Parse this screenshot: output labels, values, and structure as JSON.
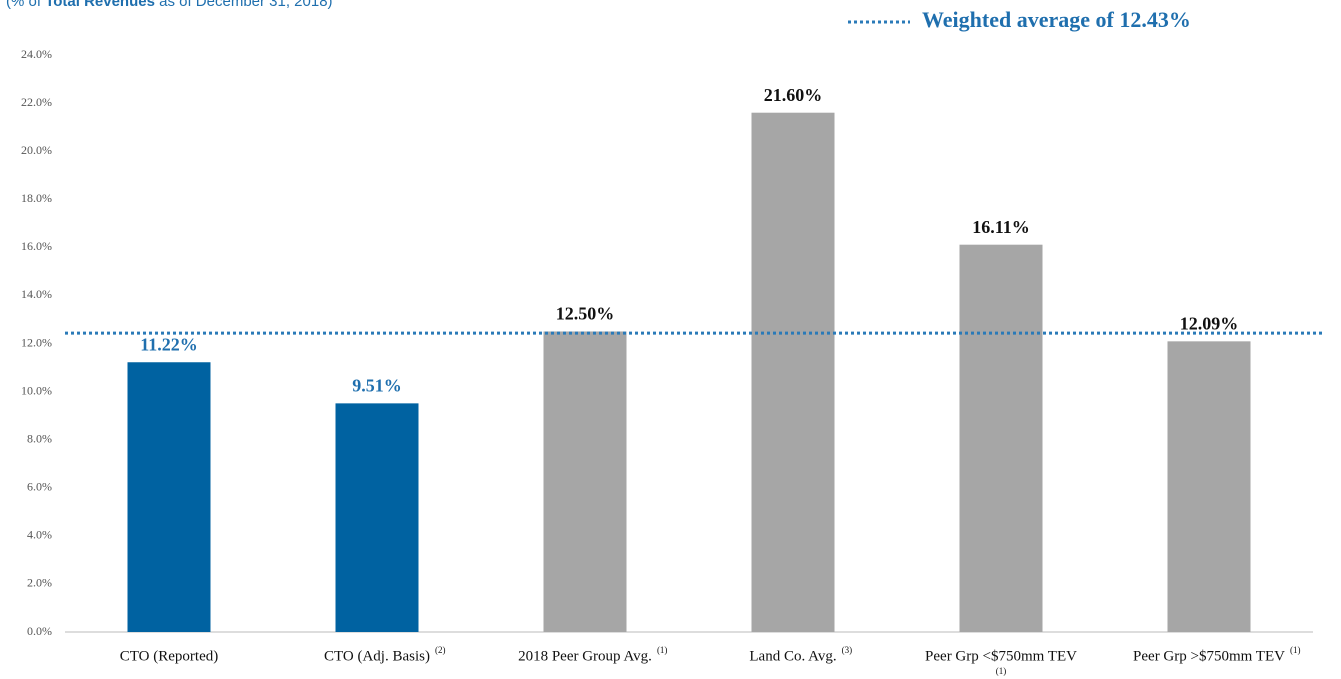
{
  "chart_data": {
    "type": "bar",
    "subtitle_parts": [
      "(% of ",
      "Total Revenues",
      " as of December 31, 2018)"
    ],
    "categories": [
      "CTO (Reported)",
      "CTO (Adj. Basis)",
      "2018 Peer Group Avg.",
      "Land Co. Avg.",
      "Peer Grp <$750mm TEV",
      "Peer Grp >$750mm TEV"
    ],
    "category_notes": [
      null,
      "(2)",
      "(1)",
      "(3)",
      "(1)",
      "(1)"
    ],
    "values": [
      11.22,
      9.51,
      12.5,
      21.6,
      16.11,
      12.09
    ],
    "value_labels": [
      "11.22%",
      "9.51%",
      "12.50%",
      "21.60%",
      "16.11%",
      "12.09%"
    ],
    "colors": [
      "#0062a1",
      "#0062a1",
      "#a6a6a6",
      "#a6a6a6",
      "#a6a6a6",
      "#a6a6a6"
    ],
    "label_colors": [
      "#1f6fae",
      "#1f6fae",
      "#111111",
      "#111111",
      "#111111",
      "#111111"
    ],
    "ylim": [
      0,
      24
    ],
    "yticks": [
      {
        "value": 0,
        "label": "0.0%"
      },
      {
        "value": 2,
        "label": "2.0%"
      },
      {
        "value": 4,
        "label": "4.0%"
      },
      {
        "value": 6,
        "label": "6.0%"
      },
      {
        "value": 8,
        "label": "8.0%"
      },
      {
        "value": 10,
        "label": "10.0%"
      },
      {
        "value": 12,
        "label": "12.0%"
      },
      {
        "value": 14,
        "label": "14.0%"
      },
      {
        "value": 16,
        "label": "16.0%"
      },
      {
        "value": 18,
        "label": "18.0%"
      },
      {
        "value": 20,
        "label": "20.0%"
      },
      {
        "value": 22,
        "label": "22.0%"
      },
      {
        "value": 24,
        "label": "24.0%"
      }
    ],
    "reference_line": {
      "value": 12.43,
      "label": "Weighted average of 12.43%",
      "color": "#2a7ab8"
    },
    "grid": false
  }
}
